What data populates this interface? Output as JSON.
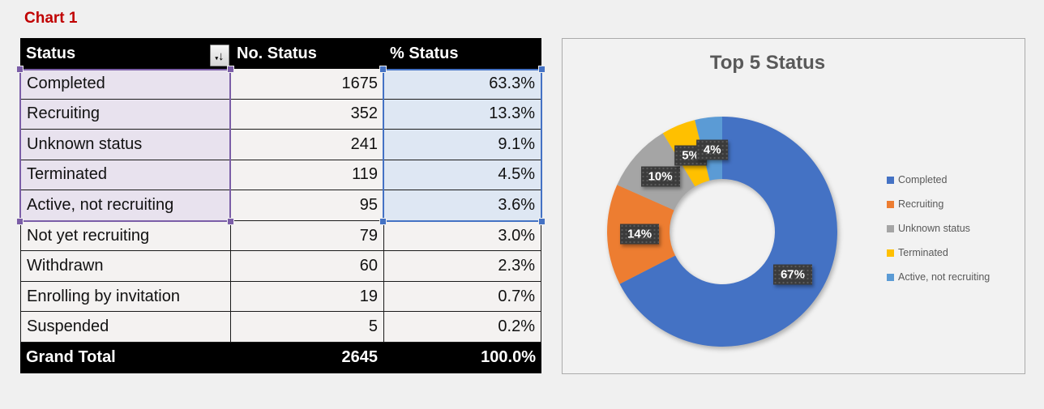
{
  "sheet": {
    "title": "Chart 1",
    "table": {
      "headers": [
        "Status",
        "No. Status",
        "% Status"
      ],
      "sort_icon": "sort-descending-filter",
      "rows": [
        {
          "status": "Completed",
          "count": "1675",
          "percent": "63.3%"
        },
        {
          "status": "Recruiting",
          "count": "352",
          "percent": "13.3%"
        },
        {
          "status": "Unknown status",
          "count": "241",
          "percent": "9.1%"
        },
        {
          "status": "Terminated",
          "count": "119",
          "percent": "4.5%"
        },
        {
          "status": "Active, not recruiting",
          "count": "95",
          "percent": "3.6%"
        },
        {
          "status": "Not yet recruiting",
          "count": "79",
          "percent": "3.0%"
        },
        {
          "status": "Withdrawn",
          "count": "60",
          "percent": "2.3%"
        },
        {
          "status": "Enrolling by invitation",
          "count": "19",
          "percent": "0.7%"
        },
        {
          "status": "Suspended",
          "count": "5",
          "percent": "0.2%"
        }
      ],
      "grand_total": {
        "status": "Grand Total",
        "count": "2645",
        "percent": "100.0%"
      },
      "selection": {
        "status_range_color": "#7B5EA7",
        "status_range_fill": "#E8E2EE",
        "percent_range_color": "#4472C4",
        "percent_range_fill": "#DEE7F3",
        "selected_rows": "Completed through Active, not recruiting"
      }
    }
  },
  "chart_data": {
    "type": "pie",
    "subtype": "doughnut",
    "title": "Top 5 Status",
    "legend_position": "right",
    "start_angle_deg": 0,
    "direction": "clockwise",
    "series": [
      {
        "name": "Completed",
        "value": 1675,
        "percent_label": "67%",
        "color": "#4472C4"
      },
      {
        "name": "Recruiting",
        "value": 352,
        "percent_label": "14%",
        "color": "#ED7D31"
      },
      {
        "name": "Unknown status",
        "value": 241,
        "percent_label": "10%",
        "color": "#A5A5A5"
      },
      {
        "name": "Terminated",
        "value": 119,
        "percent_label": "5%",
        "color": "#FFC000"
      },
      {
        "name": "Active, not recruiting",
        "value": 95,
        "percent_label": "4%",
        "color": "#5B9BD5"
      }
    ],
    "geometry": {
      "outer_radius": 142,
      "inner_radius": 65,
      "label_radius": 102
    }
  }
}
